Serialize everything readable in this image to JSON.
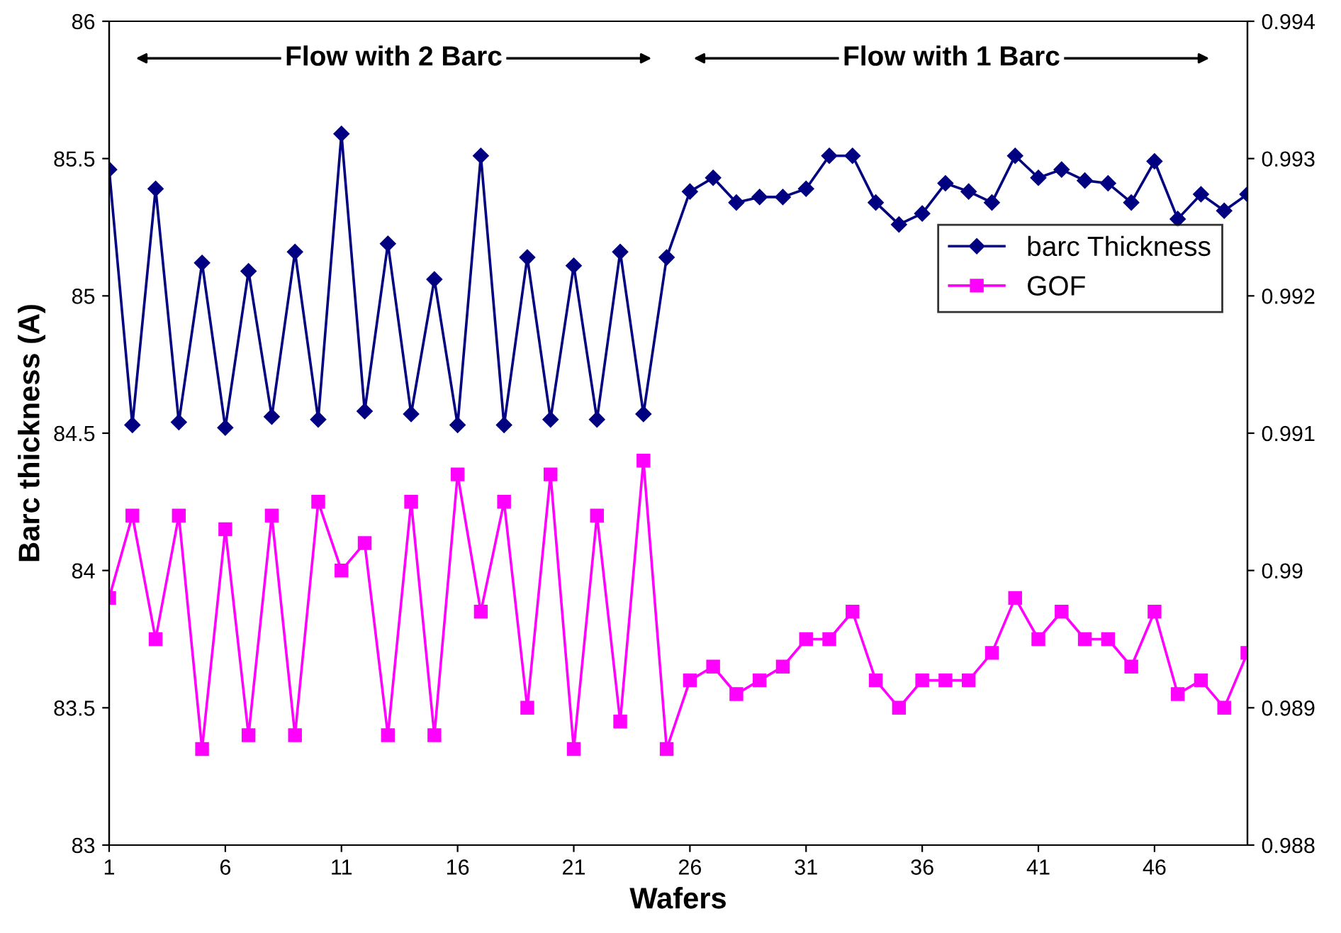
{
  "chart_data": {
    "type": "line",
    "xlabel": "Wafers",
    "ylabel": "Barc thickness (A)",
    "x": [
      1,
      2,
      3,
      4,
      5,
      6,
      7,
      8,
      9,
      10,
      11,
      12,
      13,
      14,
      15,
      16,
      17,
      18,
      19,
      20,
      21,
      22,
      23,
      24,
      25,
      26,
      27,
      28,
      29,
      30,
      31,
      32,
      33,
      34,
      35,
      36,
      37,
      38,
      39,
      40,
      41,
      42,
      43,
      44,
      45,
      46,
      47,
      48,
      49,
      50
    ],
    "series": [
      {
        "name": "barc Thickness",
        "color": "#000080",
        "marker": "diamond",
        "values": [
          85.46,
          84.53,
          85.39,
          84.54,
          85.12,
          84.52,
          85.09,
          84.56,
          85.16,
          84.55,
          85.59,
          84.58,
          85.19,
          84.57,
          85.06,
          84.53,
          85.51,
          84.53,
          85.14,
          84.55,
          85.11,
          84.55,
          85.16,
          84.57,
          85.14,
          85.38,
          85.43,
          85.34,
          85.36,
          85.36,
          85.39,
          85.51,
          85.51,
          85.34,
          85.26,
          85.3,
          85.41,
          85.38,
          85.34,
          85.51,
          85.43,
          85.46,
          85.42,
          85.41,
          85.34,
          85.49,
          85.28,
          85.37,
          85.31,
          85.37
        ]
      },
      {
        "name": "GOF",
        "color": "#ff00ff",
        "marker": "square",
        "axis": "y2",
        "values": [
          0.9898,
          0.9904,
          0.9895,
          0.9904,
          0.9887,
          0.9903,
          0.9888,
          0.9904,
          0.9888,
          0.9905,
          0.99,
          0.9902,
          0.9888,
          0.9905,
          0.9888,
          0.9907,
          0.9897,
          0.9905,
          0.989,
          0.9907,
          0.9887,
          0.9904,
          0.9889,
          0.9908,
          0.9887,
          0.9892,
          0.9893,
          0.9891,
          0.9892,
          0.9893,
          0.9895,
          0.9895,
          0.9897,
          0.9892,
          0.989,
          0.9892,
          0.9892,
          0.9892,
          0.9894,
          0.9898,
          0.9895,
          0.9897,
          0.9895,
          0.9895,
          0.9893,
          0.9897,
          0.9891,
          0.9892,
          0.989,
          0.9894
        ]
      }
    ],
    "xlim": [
      1,
      50
    ],
    "xticks": [
      1,
      6,
      11,
      16,
      21,
      26,
      31,
      36,
      41,
      46
    ],
    "ylim": [
      83,
      86
    ],
    "yticks": [
      83,
      83.5,
      84,
      84.5,
      85,
      85.5,
      86
    ],
    "y2lim": [
      0.988,
      0.994
    ],
    "y2ticks": [
      0.988,
      0.989,
      0.99,
      0.991,
      0.992,
      0.993,
      0.994
    ],
    "annotations": [
      "Flow with 2 Barc",
      "Flow with 1 Barc"
    ],
    "legend": "right",
    "grid": false,
    "line_style": "solid"
  }
}
